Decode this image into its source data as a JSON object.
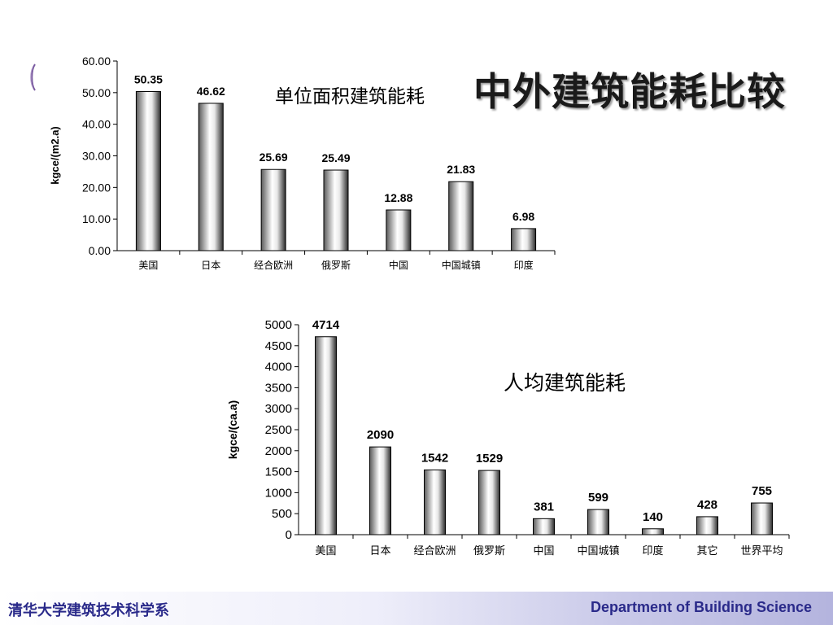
{
  "slide": {
    "title": "中外建筑能耗比较",
    "footer_left": "清华大学建筑技术科学系",
    "footer_right": "Department of Building Science"
  },
  "chart_data": [
    {
      "type": "bar",
      "title": "单位面积建筑能耗",
      "ylabel": "kgce/(m2.a)",
      "ylim": [
        0,
        60
      ],
      "yticks": [
        0,
        10,
        20,
        30,
        40,
        50,
        60
      ],
      "ytick_labels": [
        "0.00",
        "10.00",
        "20.00",
        "30.00",
        "40.00",
        "50.00",
        "60.00"
      ],
      "categories": [
        "美国",
        "日本",
        "经合欧洲",
        "俄罗斯",
        "中国",
        "中国城镇",
        "印度"
      ],
      "values": [
        50.35,
        46.62,
        25.69,
        25.49,
        12.88,
        21.83,
        6.98
      ],
      "data_labels": [
        "50.35",
        "46.62",
        "25.69",
        "25.49",
        "12.88",
        "21.83",
        "6.98"
      ],
      "grid": false,
      "legend": "none"
    },
    {
      "type": "bar",
      "title": "人均建筑能耗",
      "ylabel": "kgce/(ca.a)",
      "ylim": [
        0,
        5000
      ],
      "yticks": [
        0,
        500,
        1000,
        1500,
        2000,
        2500,
        3000,
        3500,
        4000,
        4500,
        5000
      ],
      "ytick_labels": [
        "0",
        "500",
        "1000",
        "1500",
        "2000",
        "2500",
        "3000",
        "3500",
        "4000",
        "4500",
        "5000"
      ],
      "categories": [
        "美国",
        "日本",
        "经合欧洲",
        "俄罗斯",
        "中国",
        "中国城镇",
        "印度",
        "其它",
        "世界平均"
      ],
      "values": [
        4714,
        2090,
        1542,
        1529,
        381,
        599,
        140,
        428,
        755
      ],
      "data_labels": [
        "4714",
        "2090",
        "1542",
        "1529",
        "381",
        "599",
        "140",
        "428",
        "755"
      ],
      "grid": false,
      "legend": "none"
    }
  ]
}
